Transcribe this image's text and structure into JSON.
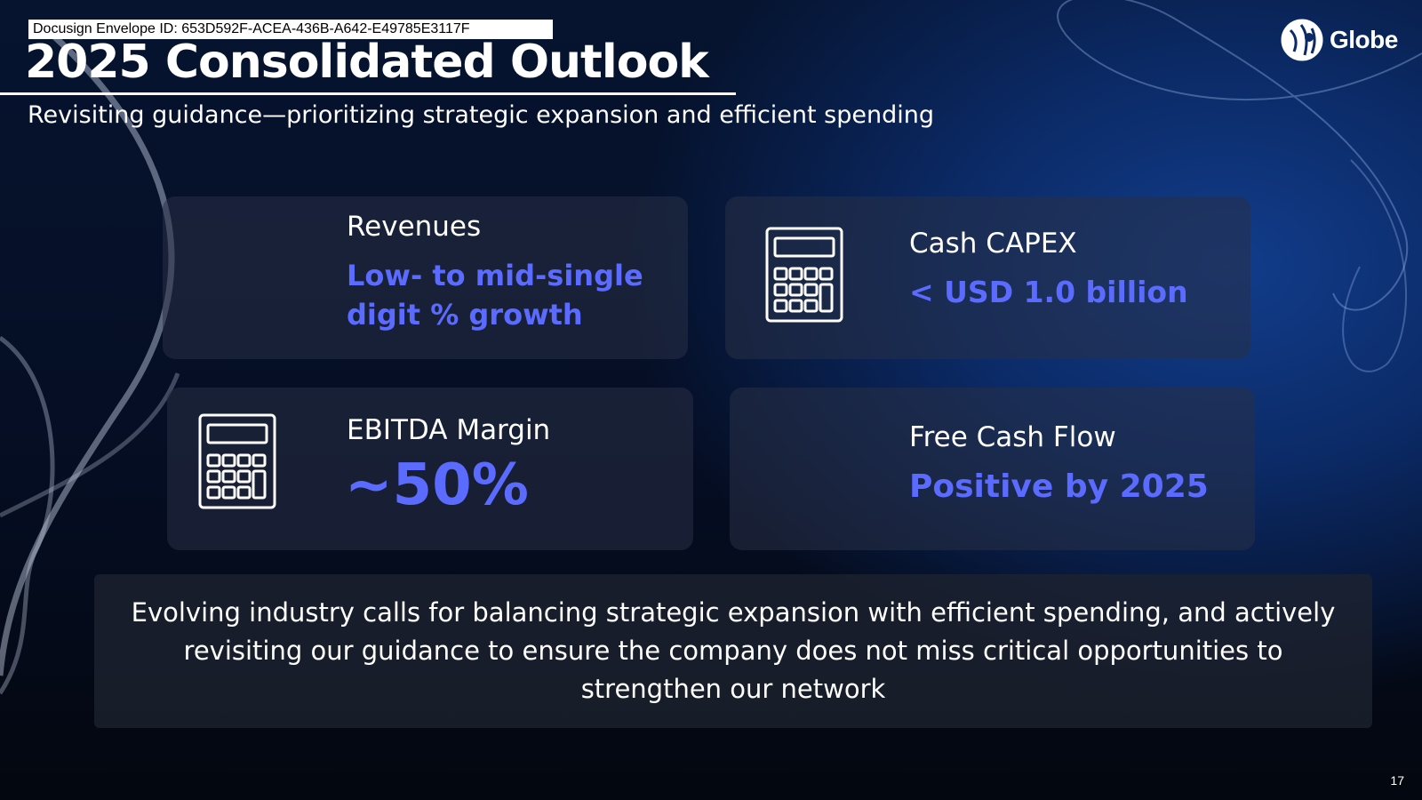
{
  "envelope_id": "Docusign Envelope ID: 653D592F-ACEA-436B-A642-E49785E3117F",
  "title": "2025 Consolidated Outlook",
  "subtitle": "Revisiting guidance—prioritizing strategic expansion and efficient spending",
  "brand": {
    "name": "Globe",
    "logo_icon": "globe-logo-icon"
  },
  "colors": {
    "accent": "#5b6bff",
    "background": "#061430",
    "card": "#283046"
  },
  "cards": [
    {
      "label": "Revenues",
      "value": "Low- to mid-single digit % growth",
      "icon": "none"
    },
    {
      "label": "Cash CAPEX",
      "value": "< USD 1.0 billion",
      "icon": "calculator-icon"
    },
    {
      "label": "EBITDA Margin",
      "value": "~50%",
      "icon": "calculator-icon"
    },
    {
      "label": "Free Cash Flow",
      "value": "Positive by 2025",
      "icon": "none"
    }
  ],
  "note": "Evolving industry calls for balancing strategic expansion with efficient spending, and actively revisiting our guidance to ensure the company does not miss critical opportunities to strengthen our network",
  "page_number": "17"
}
